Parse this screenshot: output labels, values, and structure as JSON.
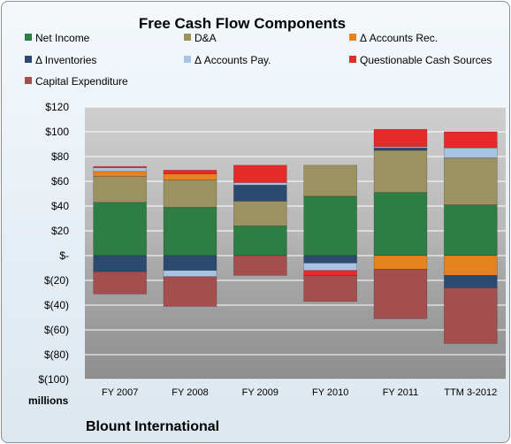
{
  "chart_data": {
    "type": "bar",
    "stacked": true,
    "title": "Free Cash Flow Components",
    "categories": [
      "FY 2007",
      "FY 2008",
      "FY 2009",
      "FY 2010",
      "FY 2011",
      "TTM 3-2012"
    ],
    "ylim": [
      -100,
      120
    ],
    "yticks": [
      120,
      100,
      80,
      60,
      40,
      20,
      0,
      -20,
      -40,
      -60,
      -80,
      -100
    ],
    "ytick_labels": [
      "$120",
      "$100",
      "$80",
      "$60",
      "$40",
      "$20",
      "$-",
      "$(20)",
      "$(40)",
      "$(60)",
      "$(80)",
      "$(100)"
    ],
    "unit_label": "millions",
    "footer_label": "Blount International",
    "grid": true,
    "legend_position": "top",
    "series": [
      {
        "name": "Net Income",
        "color": "#2e7d44",
        "values": [
          43,
          39,
          24,
          48,
          51,
          41
        ]
      },
      {
        "name": "D&A",
        "color": "#9c9160",
        "values": [
          21,
          22,
          20,
          25,
          34,
          38
        ]
      },
      {
        "name": "Δ Accounts Rec.",
        "color": "#e8821e",
        "values": [
          4,
          5,
          0,
          0,
          -11,
          -16
        ]
      },
      {
        "name": "Δ Inventories",
        "color": "#2c4a70",
        "values": [
          -13,
          -12,
          13,
          -6,
          2,
          -10
        ]
      },
      {
        "name": "Δ Accounts Pay.",
        "color": "#a9c4e2",
        "values": [
          3,
          -5,
          2,
          -6,
          1,
          8
        ]
      },
      {
        "name": "Questionable Cash Sources",
        "color": "#e52a2a",
        "values": [
          1,
          3,
          14,
          -4,
          14,
          13
        ]
      },
      {
        "name": "Capital Expenditure",
        "color": "#a44e4e",
        "values": [
          -18,
          -24,
          -16,
          -21,
          -40,
          -45
        ]
      }
    ]
  }
}
